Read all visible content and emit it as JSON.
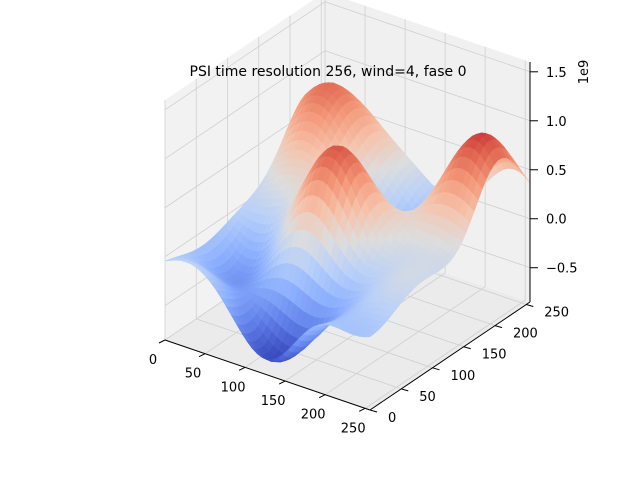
{
  "chart_data": {
    "type": "surface3d",
    "title": "PSI time resolution 256, wind=4, fase 0",
    "colormap": "coolwarm",
    "x_ticks": [
      0,
      50,
      100,
      150,
      200,
      250
    ],
    "y_ticks": [
      0,
      50,
      100,
      150,
      200,
      250
    ],
    "z_ticks": [
      -0.5,
      0.0,
      0.5,
      1.0,
      1.5
    ],
    "z_tick_labels": [
      "−0.5",
      "0.0",
      "0.5",
      "1.0",
      "1.5"
    ],
    "z_offset_label": "1e9",
    "x_range": [
      0,
      256
    ],
    "y_range": [
      0,
      256
    ],
    "z_range": [
      -0.85,
      1.6
    ],
    "value_range": [
      -0.75,
      1.15
    ],
    "grid": true,
    "surface_description": "smooth undulating surface; peak about 1.15e9 near x=120, y=130; secondary peaks about 1.0e9 near x=180–220, y=250 and about 0.85e9 near x=20, y=200; trough about -0.75e9 near x=140, y=20",
    "peaks": [
      {
        "x": 125,
        "y": 128,
        "z": 1.15
      },
      {
        "x": 30,
        "y": 230,
        "z": 0.95
      },
      {
        "x": 230,
        "y": 200,
        "z": 1.05
      },
      {
        "x": 138,
        "y": 20,
        "z": -0.75
      },
      {
        "x": 150,
        "y": 175,
        "z": -0.55
      },
      {
        "x": 50,
        "y": 60,
        "z": -0.35
      }
    ]
  }
}
